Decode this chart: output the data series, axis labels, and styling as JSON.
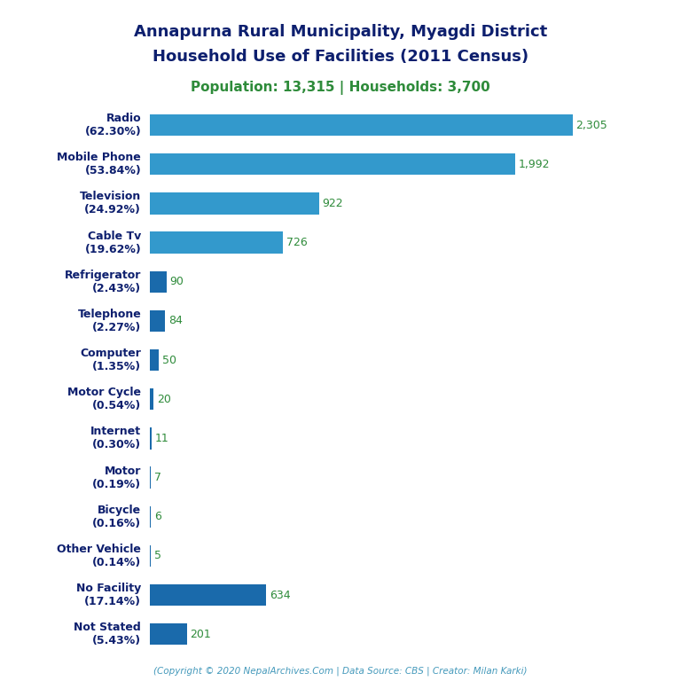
{
  "title_line1": "Annapurna Rural Municipality, Myagdi District",
  "title_line2": "Household Use of Facilities (2011 Census)",
  "subtitle": "Population: 13,315 | Households: 3,700",
  "footer": "(Copyright © 2020 NepalArchives.Com | Data Source: CBS | Creator: Milan Karki)",
  "categories": [
    "Radio\n(62.30%)",
    "Mobile Phone\n(53.84%)",
    "Television\n(24.92%)",
    "Cable Tv\n(19.62%)",
    "Refrigerator\n(2.43%)",
    "Telephone\n(2.27%)",
    "Computer\n(1.35%)",
    "Motor Cycle\n(0.54%)",
    "Internet\n(0.30%)",
    "Motor\n(0.19%)",
    "Bicycle\n(0.16%)",
    "Other Vehicle\n(0.14%)",
    "No Facility\n(17.14%)",
    "Not Stated\n(5.43%)"
  ],
  "values": [
    2305,
    1992,
    922,
    726,
    90,
    84,
    50,
    20,
    11,
    7,
    6,
    5,
    634,
    201
  ],
  "value_labels": [
    "2,305",
    "1,992",
    "922",
    "726",
    "90",
    "84",
    "50",
    "20",
    "11",
    "7",
    "6",
    "5",
    "634",
    "201"
  ],
  "bar_colors": [
    "#3399cc",
    "#3399cc",
    "#3399cc",
    "#3399cc",
    "#1a6aab",
    "#1a6aab",
    "#1a6aab",
    "#1a6aab",
    "#1a6aab",
    "#1a6aab",
    "#1a6aab",
    "#1a6aab",
    "#1a6aab",
    "#1a6aab"
  ],
  "title_color": "#0d1f6e",
  "subtitle_color": "#2e8b3a",
  "value_label_color": "#2e8b3a",
  "footer_color": "#4499bb",
  "background_color": "#ffffff",
  "xlim": [
    0,
    2600
  ],
  "title_fontsize": 13,
  "subtitle_fontsize": 11,
  "label_fontsize": 9,
  "value_fontsize": 9,
  "footer_fontsize": 7.5,
  "bar_height": 0.55
}
